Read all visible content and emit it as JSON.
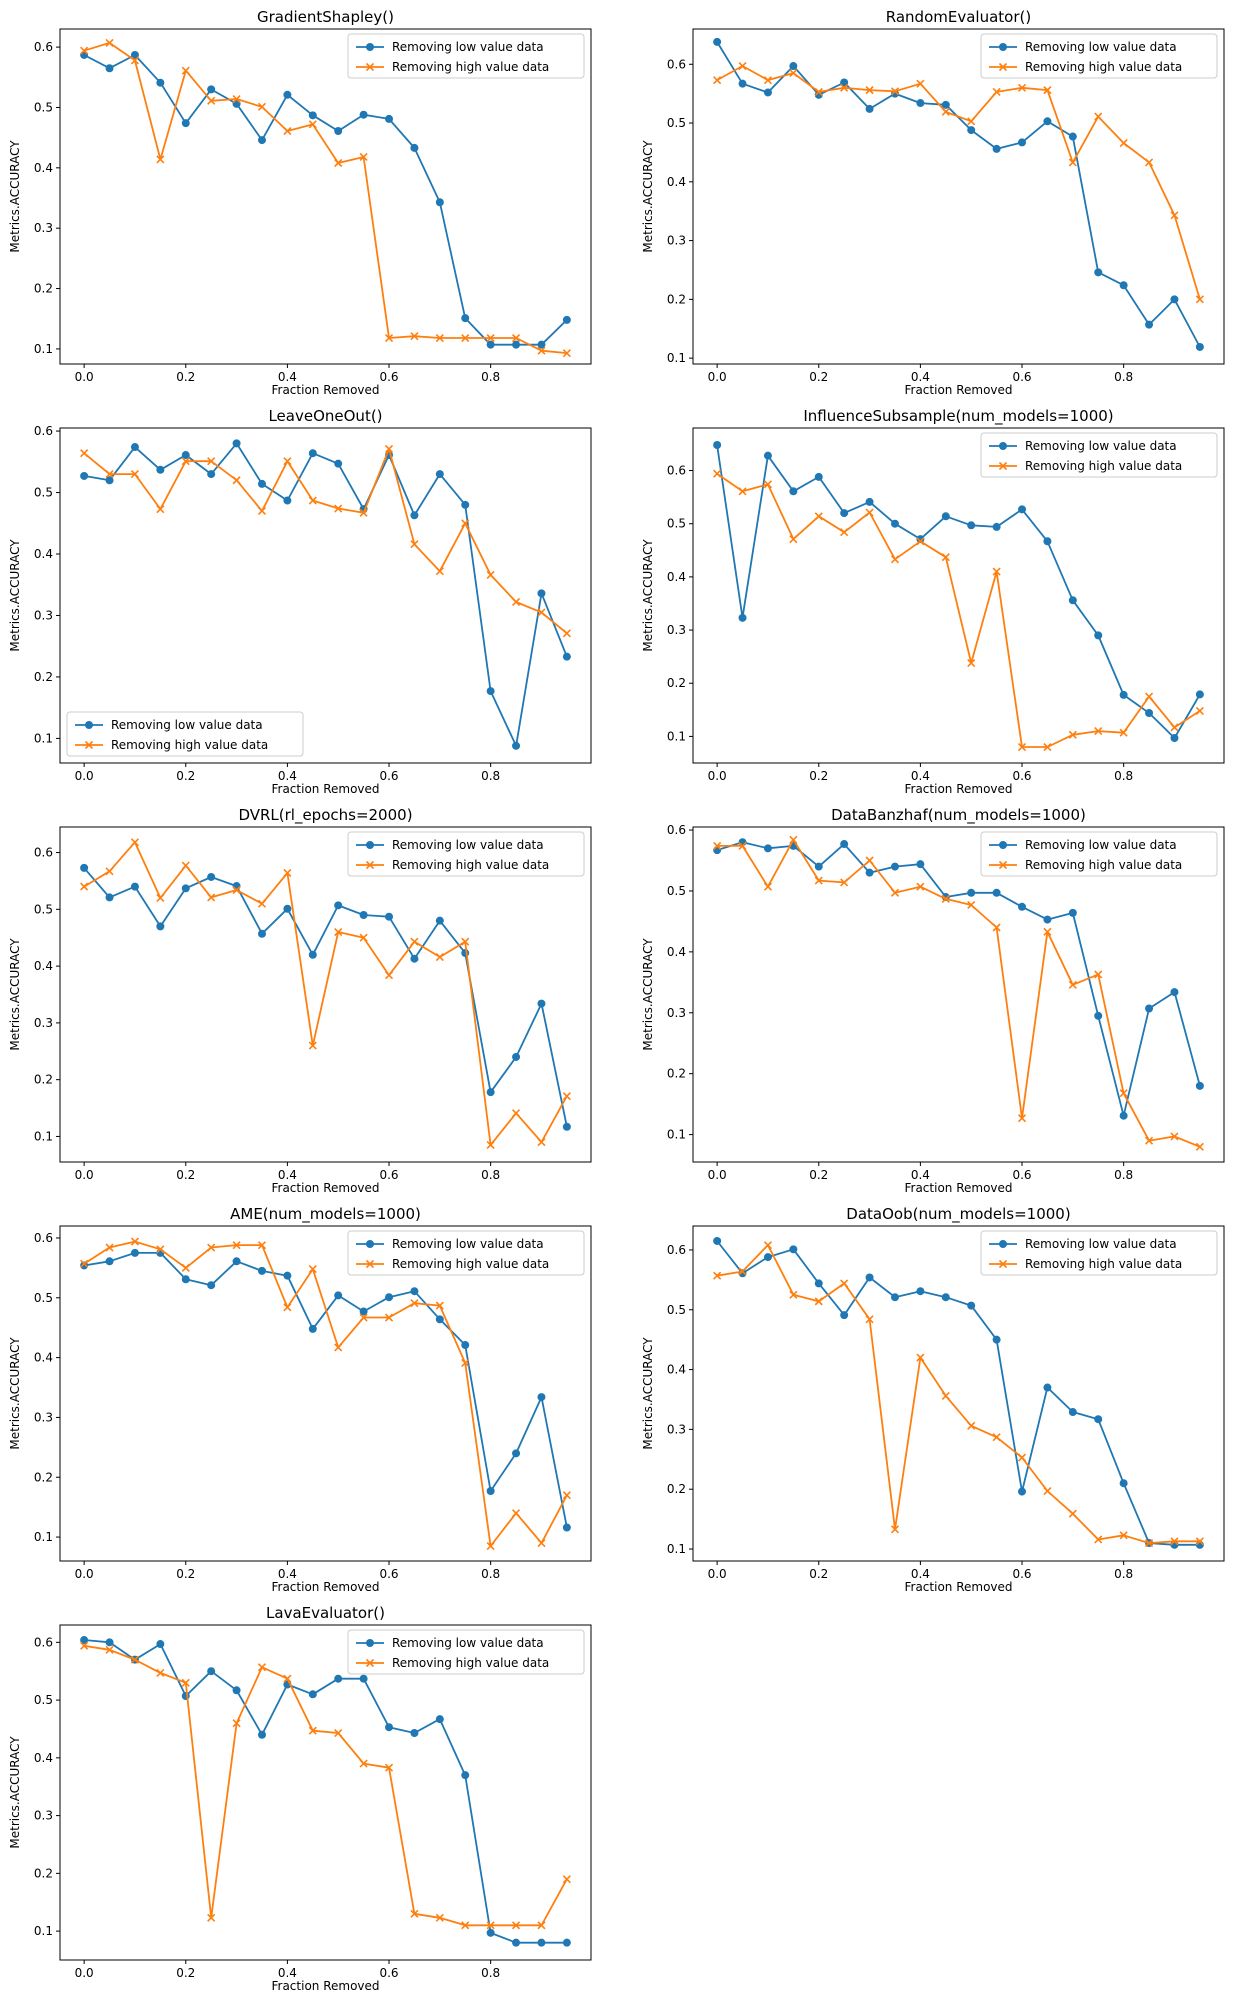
{
  "colors": {
    "low": "#1f77b4",
    "high": "#ff7f0e",
    "axis": "#000000",
    "background": "#ffffff"
  },
  "x": [
    0.0,
    0.05,
    0.1,
    0.15,
    0.2,
    0.25,
    0.3,
    0.35,
    0.4,
    0.45,
    0.5,
    0.55,
    0.6,
    0.65,
    0.7,
    0.75,
    0.8,
    0.85,
    0.9,
    0.95
  ],
  "chart_data": [
    {
      "type": "line",
      "title": "GradientShapley()",
      "xlabel": "Fraction Removed",
      "ylabel": "Metrics.ACCURACY",
      "xlim": [
        -0.0475,
        0.9975
      ],
      "ylim": [
        0.075,
        0.63
      ],
      "xticks": [
        "0.0",
        "0.2",
        "0.4",
        "0.6",
        "0.8"
      ],
      "yticks": [
        "0.1",
        "0.2",
        "0.3",
        "0.4",
        "0.5",
        "0.6"
      ],
      "legend": "top-right",
      "series": [
        {
          "name": "Removing low value data",
          "marker": "circle",
          "values": [
            0.587,
            0.565,
            0.587,
            0.541,
            0.474,
            0.53,
            0.506,
            0.446,
            0.521,
            0.487,
            0.461,
            0.488,
            0.481,
            0.433,
            0.343,
            0.151,
            0.107,
            0.107,
            0.107,
            0.148
          ]
        },
        {
          "name": "Removing high value data",
          "marker": "x",
          "values": [
            0.594,
            0.607,
            0.578,
            0.414,
            0.561,
            0.511,
            0.514,
            0.501,
            0.461,
            0.472,
            0.408,
            0.418,
            0.118,
            0.121,
            0.118,
            0.118,
            0.118,
            0.118,
            0.097,
            0.093
          ]
        }
      ]
    },
    {
      "type": "line",
      "title": "RandomEvaluator()",
      "xlabel": "Fraction Removed",
      "ylabel": "Metrics.ACCURACY",
      "xlim": [
        -0.0475,
        0.9975
      ],
      "ylim": [
        0.09,
        0.66
      ],
      "xticks": [
        "0.0",
        "0.2",
        "0.4",
        "0.6",
        "0.8"
      ],
      "yticks": [
        "0.1",
        "0.2",
        "0.3",
        "0.4",
        "0.5",
        "0.6"
      ],
      "legend": "top-right",
      "series": [
        {
          "name": "Removing low value data",
          "marker": "circle",
          "values": [
            0.638,
            0.567,
            0.552,
            0.597,
            0.548,
            0.569,
            0.524,
            0.55,
            0.534,
            0.531,
            0.488,
            0.456,
            0.467,
            0.503,
            0.477,
            0.246,
            0.224,
            0.157,
            0.2,
            0.119
          ]
        },
        {
          "name": "Removing high value data",
          "marker": "x",
          "values": [
            0.573,
            0.597,
            0.573,
            0.585,
            0.553,
            0.56,
            0.556,
            0.554,
            0.567,
            0.519,
            0.503,
            0.553,
            0.56,
            0.556,
            0.433,
            0.511,
            0.466,
            0.433,
            0.343,
            0.2
          ]
        }
      ]
    },
    {
      "type": "line",
      "title": "LeaveOneOut()",
      "xlabel": "Fraction Removed",
      "ylabel": "Metrics.ACCURACY",
      "xlim": [
        -0.0475,
        0.9975
      ],
      "ylim": [
        0.06,
        0.605
      ],
      "xticks": [
        "0.0",
        "0.2",
        "0.4",
        "0.6",
        "0.8"
      ],
      "yticks": [
        "0.1",
        "0.2",
        "0.3",
        "0.4",
        "0.5",
        "0.6"
      ],
      "legend": "bottom-left",
      "series": [
        {
          "name": "Removing low value data",
          "marker": "circle",
          "values": [
            0.527,
            0.52,
            0.574,
            0.537,
            0.561,
            0.53,
            0.58,
            0.514,
            0.487,
            0.564,
            0.547,
            0.473,
            0.561,
            0.463,
            0.53,
            0.48,
            0.177,
            0.088,
            0.336,
            0.233
          ]
        },
        {
          "name": "Removing high value data",
          "marker": "x",
          "values": [
            0.564,
            0.53,
            0.53,
            0.473,
            0.551,
            0.551,
            0.52,
            0.47,
            0.551,
            0.487,
            0.474,
            0.467,
            0.571,
            0.416,
            0.372,
            0.45,
            0.366,
            0.322,
            0.305,
            0.271
          ]
        }
      ]
    },
    {
      "type": "line",
      "title": "InfluenceSubsample(num_models=1000)",
      "xlabel": "Fraction Removed",
      "ylabel": "Metrics.ACCURACY",
      "xlim": [
        -0.0475,
        0.9975
      ],
      "ylim": [
        0.05,
        0.68
      ],
      "xticks": [
        "0.0",
        "0.2",
        "0.4",
        "0.6",
        "0.8"
      ],
      "yticks": [
        "0.1",
        "0.2",
        "0.3",
        "0.4",
        "0.5",
        "0.6"
      ],
      "legend": "top-right",
      "series": [
        {
          "name": "Removing low value data",
          "marker": "circle",
          "values": [
            0.648,
            0.323,
            0.628,
            0.561,
            0.588,
            0.52,
            0.541,
            0.5,
            0.471,
            0.514,
            0.497,
            0.494,
            0.527,
            0.467,
            0.356,
            0.29,
            0.178,
            0.144,
            0.097,
            0.179
          ]
        },
        {
          "name": "Removing high value data",
          "marker": "x",
          "values": [
            0.594,
            0.561,
            0.574,
            0.471,
            0.514,
            0.484,
            0.521,
            0.433,
            0.467,
            0.437,
            0.238,
            0.41,
            0.08,
            0.08,
            0.103,
            0.11,
            0.107,
            0.175,
            0.117,
            0.148
          ]
        }
      ]
    },
    {
      "type": "line",
      "title": "DVRL(rl_epochs=2000)",
      "xlabel": "Fraction Removed",
      "ylabel": "Metrics.ACCURACY",
      "xlim": [
        -0.0475,
        0.9975
      ],
      "ylim": [
        0.055,
        0.645
      ],
      "xticks": [
        "0.0",
        "0.2",
        "0.4",
        "0.6",
        "0.8"
      ],
      "yticks": [
        "0.1",
        "0.2",
        "0.3",
        "0.4",
        "0.5",
        "0.6"
      ],
      "legend": "top-right",
      "series": [
        {
          "name": "Removing low value data",
          "marker": "circle",
          "values": [
            0.573,
            0.521,
            0.54,
            0.47,
            0.537,
            0.557,
            0.541,
            0.457,
            0.501,
            0.42,
            0.507,
            0.49,
            0.487,
            0.413,
            0.48,
            0.423,
            0.178,
            0.24,
            0.334,
            0.117
          ]
        },
        {
          "name": "Removing high value data",
          "marker": "x",
          "values": [
            0.54,
            0.567,
            0.618,
            0.52,
            0.577,
            0.521,
            0.534,
            0.51,
            0.564,
            0.26,
            0.46,
            0.45,
            0.384,
            0.443,
            0.416,
            0.443,
            0.085,
            0.141,
            0.09,
            0.171
          ]
        }
      ]
    },
    {
      "type": "line",
      "title": "DataBanzhaf(num_models=1000)",
      "xlabel": "Fraction Removed",
      "ylabel": "Metrics.ACCURACY",
      "xlim": [
        -0.0475,
        0.9975
      ],
      "ylim": [
        0.055,
        0.605
      ],
      "xticks": [
        "0.0",
        "0.2",
        "0.4",
        "0.6",
        "0.8"
      ],
      "yticks": [
        "0.1",
        "0.2",
        "0.3",
        "0.4",
        "0.5",
        "0.6"
      ],
      "legend": "top-right",
      "series": [
        {
          "name": "Removing low value data",
          "marker": "circle",
          "values": [
            0.567,
            0.58,
            0.57,
            0.574,
            0.54,
            0.577,
            0.53,
            0.54,
            0.544,
            0.49,
            0.497,
            0.497,
            0.474,
            0.453,
            0.464,
            0.295,
            0.131,
            0.307,
            0.334,
            0.18
          ]
        },
        {
          "name": "Removing high value data",
          "marker": "x",
          "values": [
            0.574,
            0.574,
            0.507,
            0.584,
            0.517,
            0.514,
            0.55,
            0.497,
            0.507,
            0.487,
            0.477,
            0.44,
            0.127,
            0.433,
            0.346,
            0.363,
            0.168,
            0.09,
            0.097,
            0.08
          ]
        }
      ]
    },
    {
      "type": "line",
      "title": "AME(num_models=1000)",
      "xlabel": "Fraction Removed",
      "ylabel": "Metrics.ACCURACY",
      "xlim": [
        -0.0475,
        0.9975
      ],
      "ylim": [
        0.06,
        0.62
      ],
      "xticks": [
        "0.0",
        "0.2",
        "0.4",
        "0.6",
        "0.8"
      ],
      "yticks": [
        "0.1",
        "0.2",
        "0.3",
        "0.4",
        "0.5",
        "0.6"
      ],
      "legend": "top-right",
      "series": [
        {
          "name": "Removing low value data",
          "marker": "circle",
          "values": [
            0.554,
            0.561,
            0.575,
            0.575,
            0.531,
            0.521,
            0.561,
            0.545,
            0.537,
            0.448,
            0.504,
            0.477,
            0.501,
            0.511,
            0.464,
            0.421,
            0.177,
            0.24,
            0.334,
            0.116
          ]
        },
        {
          "name": "Removing high value data",
          "marker": "x",
          "values": [
            0.557,
            0.584,
            0.594,
            0.581,
            0.55,
            0.584,
            0.588,
            0.588,
            0.484,
            0.548,
            0.417,
            0.467,
            0.467,
            0.491,
            0.487,
            0.391,
            0.085,
            0.14,
            0.09,
            0.17
          ]
        }
      ]
    },
    {
      "type": "line",
      "title": "DataOob(num_models=1000)",
      "xlabel": "Fraction Removed",
      "ylabel": "Metrics.ACCURACY",
      "xlim": [
        -0.0475,
        0.9975
      ],
      "ylim": [
        0.08,
        0.64
      ],
      "xticks": [
        "0.0",
        "0.2",
        "0.4",
        "0.6",
        "0.8"
      ],
      "yticks": [
        "0.1",
        "0.2",
        "0.3",
        "0.4",
        "0.5",
        "0.6"
      ],
      "legend": "top-right",
      "series": [
        {
          "name": "Removing low value data",
          "marker": "circle",
          "values": [
            0.615,
            0.561,
            0.588,
            0.601,
            0.544,
            0.491,
            0.554,
            0.521,
            0.531,
            0.521,
            0.507,
            0.45,
            0.196,
            0.37,
            0.329,
            0.317,
            0.21,
            0.11,
            0.107,
            0.107
          ]
        },
        {
          "name": "Removing high value data",
          "marker": "x",
          "values": [
            0.557,
            0.564,
            0.608,
            0.525,
            0.514,
            0.544,
            0.484,
            0.133,
            0.42,
            0.356,
            0.306,
            0.287,
            0.253,
            0.197,
            0.159,
            0.116,
            0.123,
            0.11,
            0.113,
            0.113
          ]
        }
      ]
    },
    {
      "type": "line",
      "title": "LavaEvaluator()",
      "xlabel": "Fraction Removed",
      "ylabel": "Metrics.ACCURACY",
      "xlim": [
        -0.0475,
        0.9975
      ],
      "ylim": [
        0.05,
        0.63
      ],
      "xticks": [
        "0.0",
        "0.2",
        "0.4",
        "0.6",
        "0.8"
      ],
      "yticks": [
        "0.1",
        "0.2",
        "0.3",
        "0.4",
        "0.5",
        "0.6"
      ],
      "legend": "top-right",
      "series": [
        {
          "name": "Removing low value data",
          "marker": "circle",
          "values": [
            0.604,
            0.6,
            0.57,
            0.597,
            0.507,
            0.55,
            0.517,
            0.44,
            0.527,
            0.51,
            0.537,
            0.537,
            0.453,
            0.443,
            0.467,
            0.37,
            0.097,
            0.08,
            0.08,
            0.08
          ]
        },
        {
          "name": "Removing high value data",
          "marker": "x",
          "values": [
            0.594,
            0.587,
            0.57,
            0.547,
            0.53,
            0.123,
            0.46,
            0.557,
            0.537,
            0.447,
            0.443,
            0.39,
            0.383,
            0.13,
            0.123,
            0.11,
            0.11,
            0.11,
            0.11,
            0.19
          ]
        }
      ]
    }
  ]
}
